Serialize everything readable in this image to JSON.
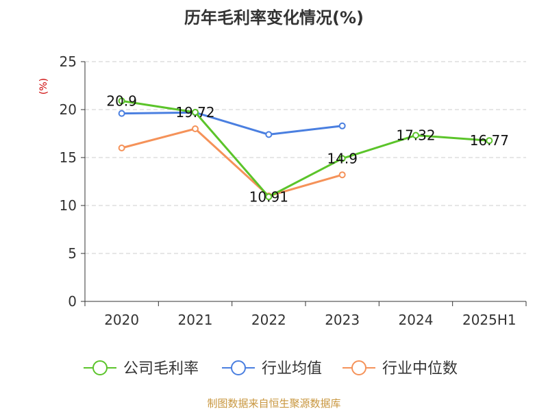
{
  "chart_data": {
    "type": "line",
    "title": "历年毛利率变化情况(%)",
    "ylabel": "(%)",
    "ylim": [
      0,
      25
    ],
    "yticks": [
      0,
      5,
      10,
      15,
      20,
      25
    ],
    "categories": [
      "2020",
      "2021",
      "2022",
      "2023",
      "2024",
      "2025H1"
    ],
    "grid": true,
    "legend_position": "bottom",
    "series": [
      {
        "name": "公司毛利率",
        "color": "#5bc42a",
        "values": [
          20.9,
          19.72,
          10.91,
          14.9,
          17.32,
          16.77
        ],
        "labels": [
          "20.9",
          "19.72",
          "10.91",
          "14.9",
          "17.32",
          "16.77"
        ]
      },
      {
        "name": "行业均值",
        "color": "#4a7fe0",
        "values": [
          19.6,
          19.7,
          17.4,
          18.3,
          null,
          null
        ]
      },
      {
        "name": "行业中位数",
        "color": "#f59259",
        "values": [
          16.0,
          18.0,
          11.0,
          13.2,
          null,
          null
        ]
      }
    ]
  },
  "footer": {
    "source": "制图数据来自恒生聚源数据库"
  }
}
